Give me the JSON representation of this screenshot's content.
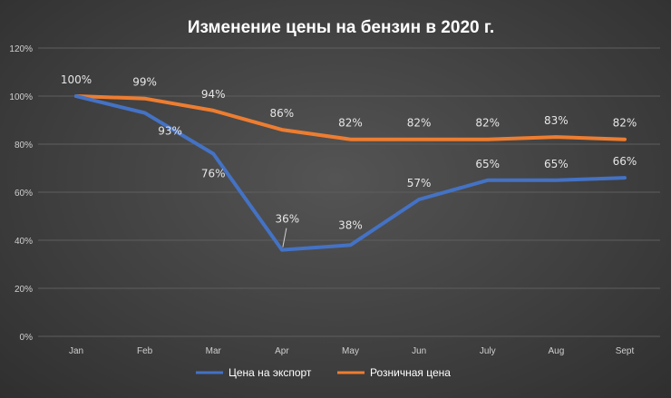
{
  "chart_data": {
    "type": "line",
    "title": "Изменение цены на бензин в 2020 г.",
    "categories": [
      "Jan",
      "Feb",
      "Mar",
      "Apr",
      "May",
      "Jun",
      "July",
      "Aug",
      "Sept"
    ],
    "ylim": [
      0,
      120
    ],
    "yticks": [
      "0%",
      "20%",
      "40%",
      "60%",
      "80%",
      "100%",
      "120%"
    ],
    "grid": true,
    "legend_position": "bottom",
    "series": [
      {
        "name": "Цена на экспорт",
        "color": "#4472c4",
        "values": [
          100,
          93,
          76,
          36,
          38,
          57,
          65,
          65,
          66
        ],
        "labels": [
          "100%",
          "93%",
          "76%",
          "36%",
          "38%",
          "57%",
          "65%",
          "65%",
          "66%"
        ]
      },
      {
        "name": "Розничная цена",
        "color": "#ed7d31",
        "values": [
          100,
          99,
          94,
          86,
          82,
          82,
          82,
          83,
          82
        ],
        "labels": [
          "",
          "99%",
          "94%",
          "86%",
          "82%",
          "82%",
          "82%",
          "83%",
          "82%"
        ]
      }
    ]
  }
}
